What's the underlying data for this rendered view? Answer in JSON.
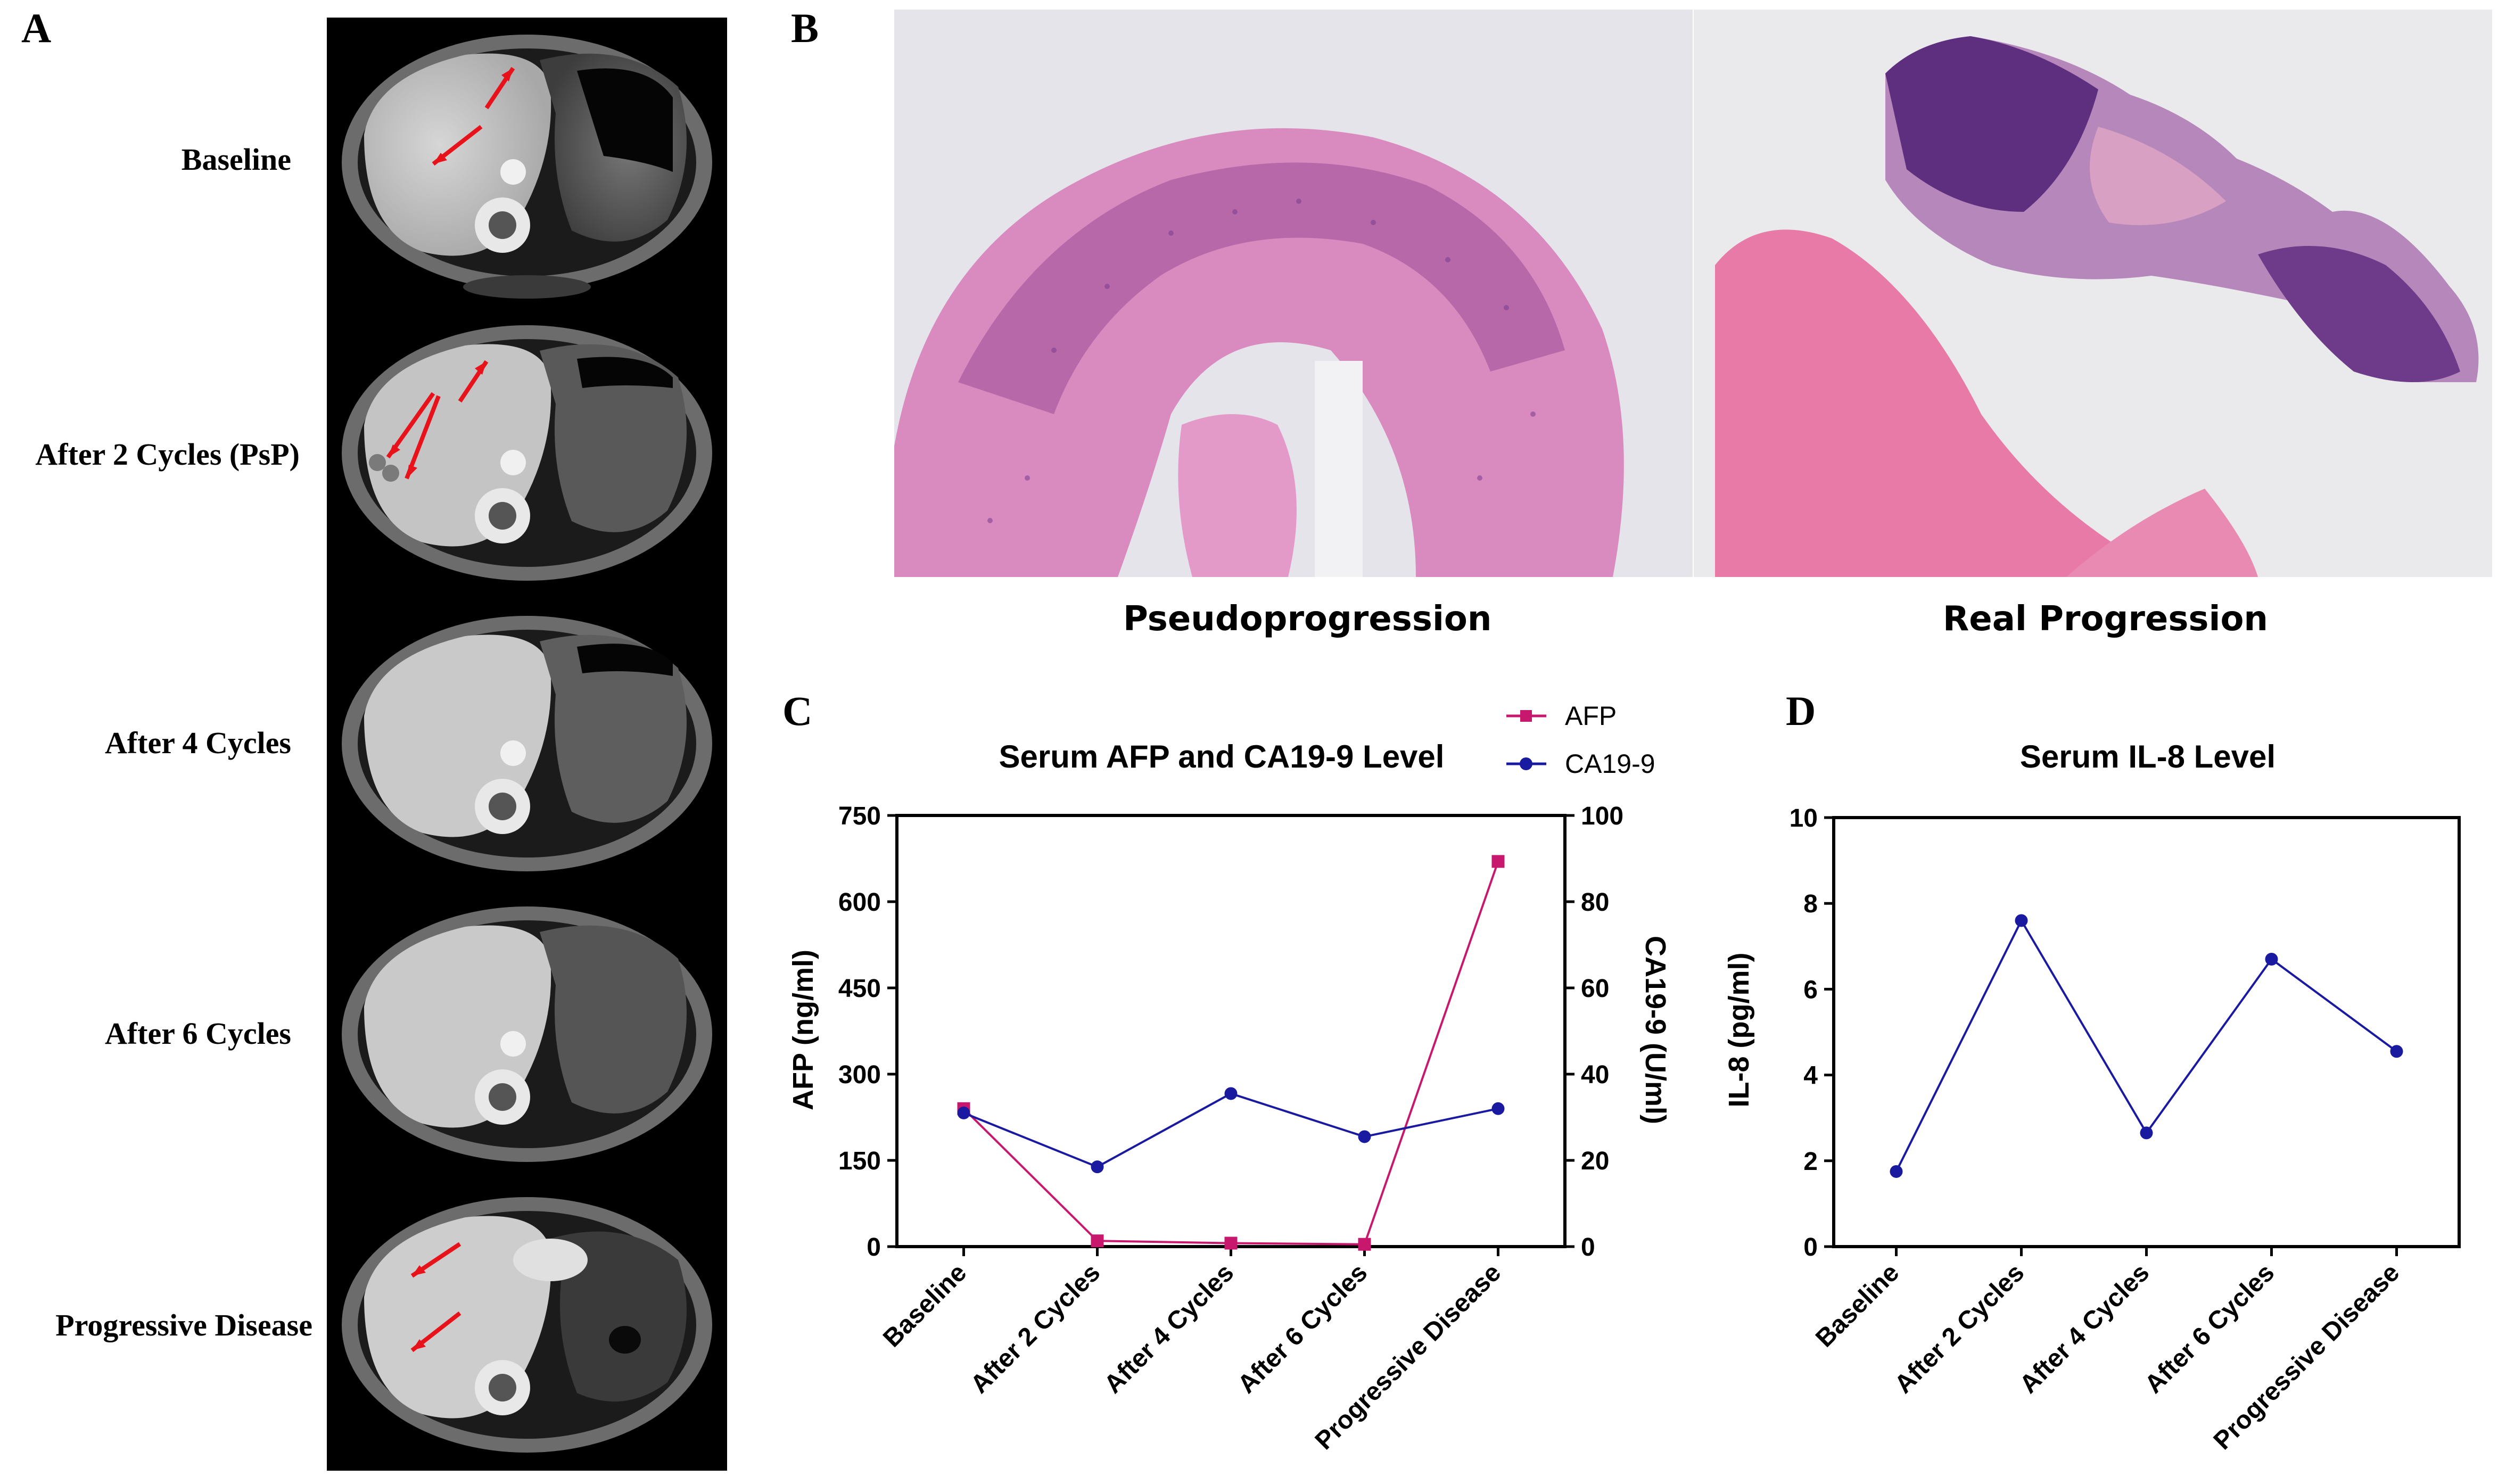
{
  "panels": {
    "a": "A",
    "b": "B",
    "c": "C",
    "d": "D"
  },
  "ct_labels": [
    "Baseline",
    "After 2 Cycles (PsP)",
    "After 4 Cycles",
    "After 6 Cycles",
    "Progressive Disease"
  ],
  "histology": {
    "left_caption": "Pseudoprogression",
    "right_caption": "Real Progression"
  },
  "colors": {
    "afp": "#c8186e",
    "ca199": "#1a1aa0",
    "il8": "#1a1aa0",
    "arrow": "#e8131a"
  },
  "chart_data": [
    {
      "type": "line",
      "title": "Serum AFP and CA19-9 Level",
      "categories": [
        "Baseline",
        "After 2 Cycles",
        "After 4 Cycles",
        "After 6 Cycles",
        "Progressive Disease"
      ],
      "ylabel": "AFP (ng/ml)",
      "y2label": "CA19-9 (U/ml)",
      "ylim": [
        0,
        750
      ],
      "yticks": [
        "0",
        "150",
        "300",
        "450",
        "600",
        "750"
      ],
      "y2lim": [
        0,
        100
      ],
      "y2ticks": [
        "0",
        "20",
        "40",
        "60",
        "80",
        "100"
      ],
      "legend_position": "top-right",
      "series": [
        {
          "name": "AFP",
          "axis": "left",
          "marker": "square",
          "values": [
            240,
            10,
            6,
            4,
            670
          ]
        },
        {
          "name": "CA19-9",
          "axis": "right",
          "marker": "circle",
          "values": [
            31,
            18.5,
            35.5,
            25.5,
            32
          ]
        }
      ]
    },
    {
      "type": "line",
      "title": "Serum IL-8 Level",
      "categories": [
        "Baseline",
        "After 2 Cycles",
        "After 4 Cycles",
        "After 6 Cycles",
        "Progressive Disease"
      ],
      "ylabel": "IL-8 (pg/ml)",
      "ylim": [
        0,
        10
      ],
      "yticks": [
        "0",
        "2",
        "4",
        "6",
        "8",
        "10"
      ],
      "series": [
        {
          "values": [
            1.75,
            7.6,
            2.65,
            6.7,
            4.55
          ]
        }
      ]
    }
  ]
}
